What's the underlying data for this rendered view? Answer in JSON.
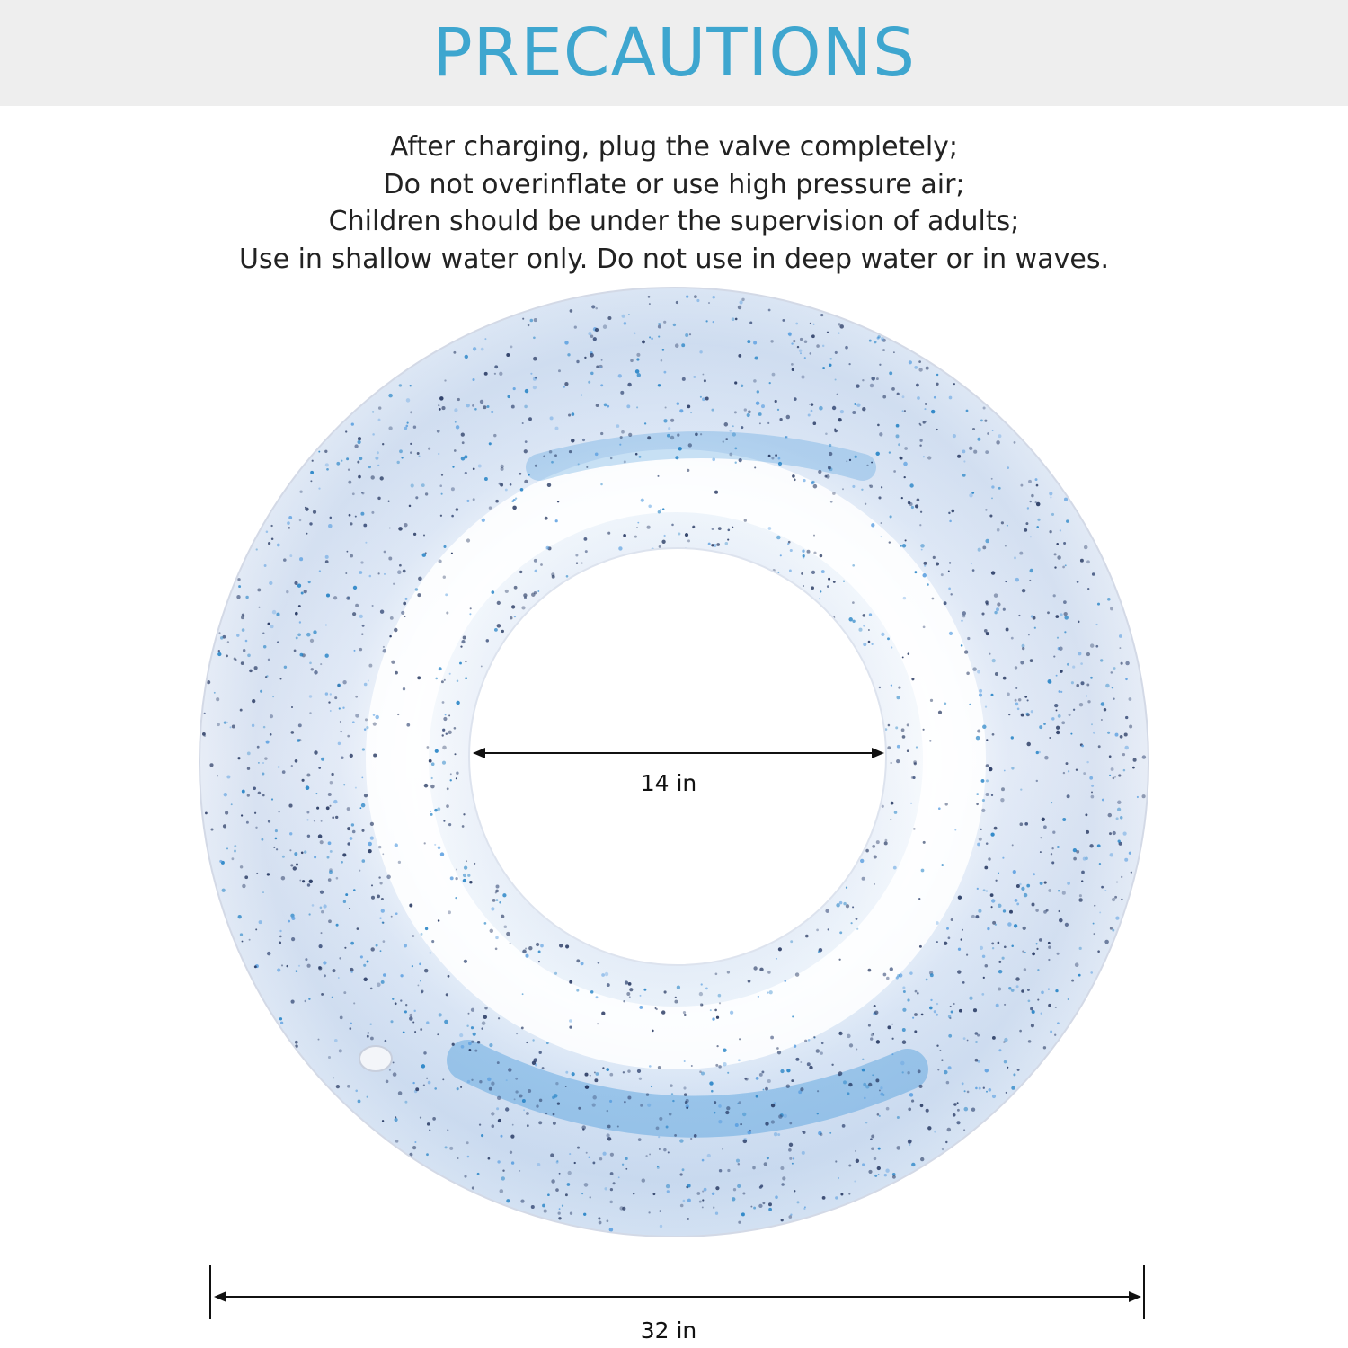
{
  "header": {
    "title": "PRECAUTIONS"
  },
  "precautions": [
    "After charging, plug the valve completely;",
    "Do not overinflate or use high pressure air;",
    "Children should be under the supervision of adults;",
    "Use in shallow water only. Do not use in deep water or in waves."
  ],
  "dimensions": {
    "inner_diameter": "14 in",
    "outer_diameter": "32 in"
  },
  "colors": {
    "title": "#3ea6cf",
    "banner_background": "#eeeeee",
    "text": "#222222",
    "glitter_blue": "#1f7fc4",
    "glitter_navy": "#1d2f5a"
  }
}
